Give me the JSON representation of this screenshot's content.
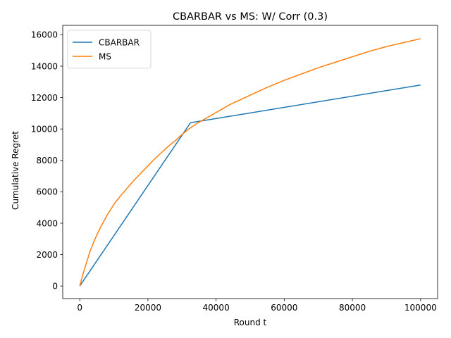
{
  "chart_data": {
    "type": "line",
    "title": "CBARBAR vs MS: W/ Corr (0.3)",
    "xlabel": "Round t",
    "ylabel": "Cumulative Regret",
    "xlim": [
      -5000,
      105000
    ],
    "ylim": [
      -800,
      16600
    ],
    "xticks": [
      0,
      20000,
      40000,
      60000,
      80000,
      100000
    ],
    "yticks": [
      0,
      2000,
      4000,
      6000,
      8000,
      10000,
      12000,
      14000,
      16000
    ],
    "grid": false,
    "legend_position": "upper left",
    "series": [
      {
        "name": "CBARBAR",
        "color": "#1f77b4",
        "points": [
          [
            0,
            0
          ],
          [
            32500,
            10400
          ],
          [
            100000,
            12800
          ]
        ]
      },
      {
        "name": "MS",
        "color": "#ff7f0e",
        "points": [
          [
            0,
            0
          ],
          [
            1000,
            800
          ],
          [
            2000,
            1500
          ],
          [
            3000,
            2200
          ],
          [
            4000,
            2750
          ],
          [
            5000,
            3250
          ],
          [
            6000,
            3700
          ],
          [
            7000,
            4100
          ],
          [
            8000,
            4500
          ],
          [
            9000,
            4850
          ],
          [
            10000,
            5200
          ],
          [
            12000,
            5750
          ],
          [
            14000,
            6250
          ],
          [
            16000,
            6750
          ],
          [
            18000,
            7200
          ],
          [
            20000,
            7650
          ],
          [
            22000,
            8100
          ],
          [
            24000,
            8500
          ],
          [
            26000,
            8900
          ],
          [
            28000,
            9250
          ],
          [
            30000,
            9650
          ],
          [
            32000,
            10000
          ],
          [
            34000,
            10300
          ],
          [
            36000,
            10550
          ],
          [
            38000,
            10800
          ],
          [
            40000,
            11050
          ],
          [
            42000,
            11300
          ],
          [
            44000,
            11550
          ],
          [
            46000,
            11750
          ],
          [
            48000,
            11950
          ],
          [
            50000,
            12150
          ],
          [
            55000,
            12650
          ],
          [
            60000,
            13100
          ],
          [
            65000,
            13500
          ],
          [
            70000,
            13900
          ],
          [
            75000,
            14250
          ],
          [
            80000,
            14600
          ],
          [
            85000,
            14950
          ],
          [
            90000,
            15250
          ],
          [
            95000,
            15500
          ],
          [
            100000,
            15750
          ]
        ]
      }
    ]
  }
}
